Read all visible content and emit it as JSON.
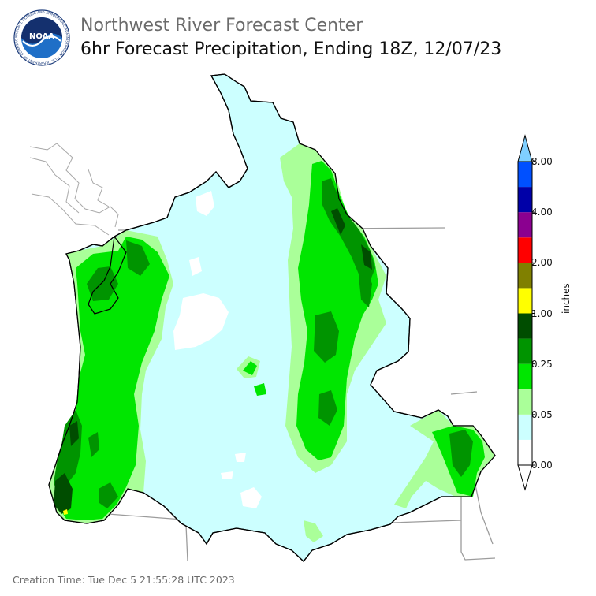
{
  "header": {
    "org_title": "Northwest River Forecast Center",
    "map_title": "6hr Forecast Precipitation, Ending 18Z, 12/07/23",
    "logo_text": "NOAA",
    "logo_ring_text": "NATIONAL OCEANIC AND ATMOSPHERIC ADMINISTRATION · U.S. DEPARTMENT OF COMMERCE"
  },
  "legend": {
    "unit": "inches",
    "tick_labels": [
      "8.00",
      "4.00",
      "2.00",
      "1.00",
      "0.25",
      "0.05",
      "0.00"
    ],
    "colors": [
      "#ffffff",
      "#ccffff",
      "#aaff99",
      "#00e600",
      "#009400",
      "#004d00",
      "#ffff00",
      "#808000",
      "#ff0000",
      "#8b0090",
      "#0000a8",
      "#0050ff",
      "#7fcfff"
    ]
  },
  "footer": {
    "creation_time": "Creation Time: Tue Dec 5 21:55:28 UTC 2023"
  }
}
